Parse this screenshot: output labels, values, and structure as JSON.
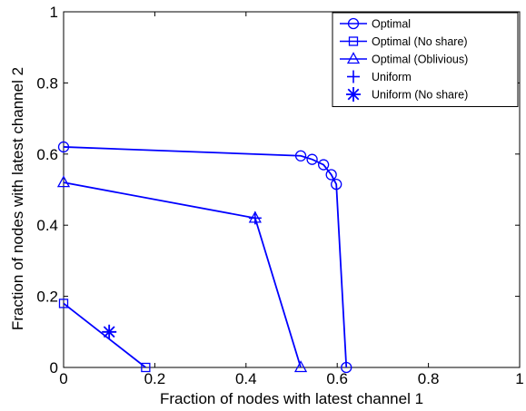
{
  "chart_data": {
    "type": "line",
    "title": "",
    "xlabel": "Fraction of nodes with latest channel 1",
    "ylabel": "Fraction of nodes with latest channel 2",
    "xlim": [
      0,
      1
    ],
    "ylim": [
      0,
      1
    ],
    "x_ticks": [
      "0",
      "0.2",
      "0.4",
      "0.6",
      "0.8",
      "1"
    ],
    "y_ticks": [
      "0",
      "0.2",
      "0.4",
      "0.6",
      "0.8",
      "1"
    ],
    "grid": false,
    "legend_position": "top-right",
    "color": "#0000ff",
    "series": [
      {
        "name": "Optimal",
        "marker": "circle",
        "points": [
          [
            0,
            0.62
          ],
          [
            0.52,
            0.595
          ],
          [
            0.545,
            0.585
          ],
          [
            0.57,
            0.57
          ],
          [
            0.587,
            0.542
          ],
          [
            0.598,
            0.515
          ],
          [
            0.62,
            0
          ]
        ]
      },
      {
        "name": "Optimal (No share)",
        "marker": "square",
        "points": [
          [
            0,
            0.18
          ],
          [
            0.18,
            0
          ]
        ]
      },
      {
        "name": "Optimal (Oblivious)",
        "marker": "triangle",
        "points": [
          [
            0,
            0.52
          ],
          [
            0.42,
            0.42
          ],
          [
            0.52,
            0
          ]
        ]
      },
      {
        "name": "Uniform",
        "marker": "plus",
        "points": [
          [
            0.1,
            0.1
          ],
          [
            0.42,
            0.42
          ]
        ]
      },
      {
        "name": "Uniform (No share)",
        "marker": "asterisk",
        "points": [
          [
            0.1,
            0.1
          ]
        ]
      }
    ]
  }
}
